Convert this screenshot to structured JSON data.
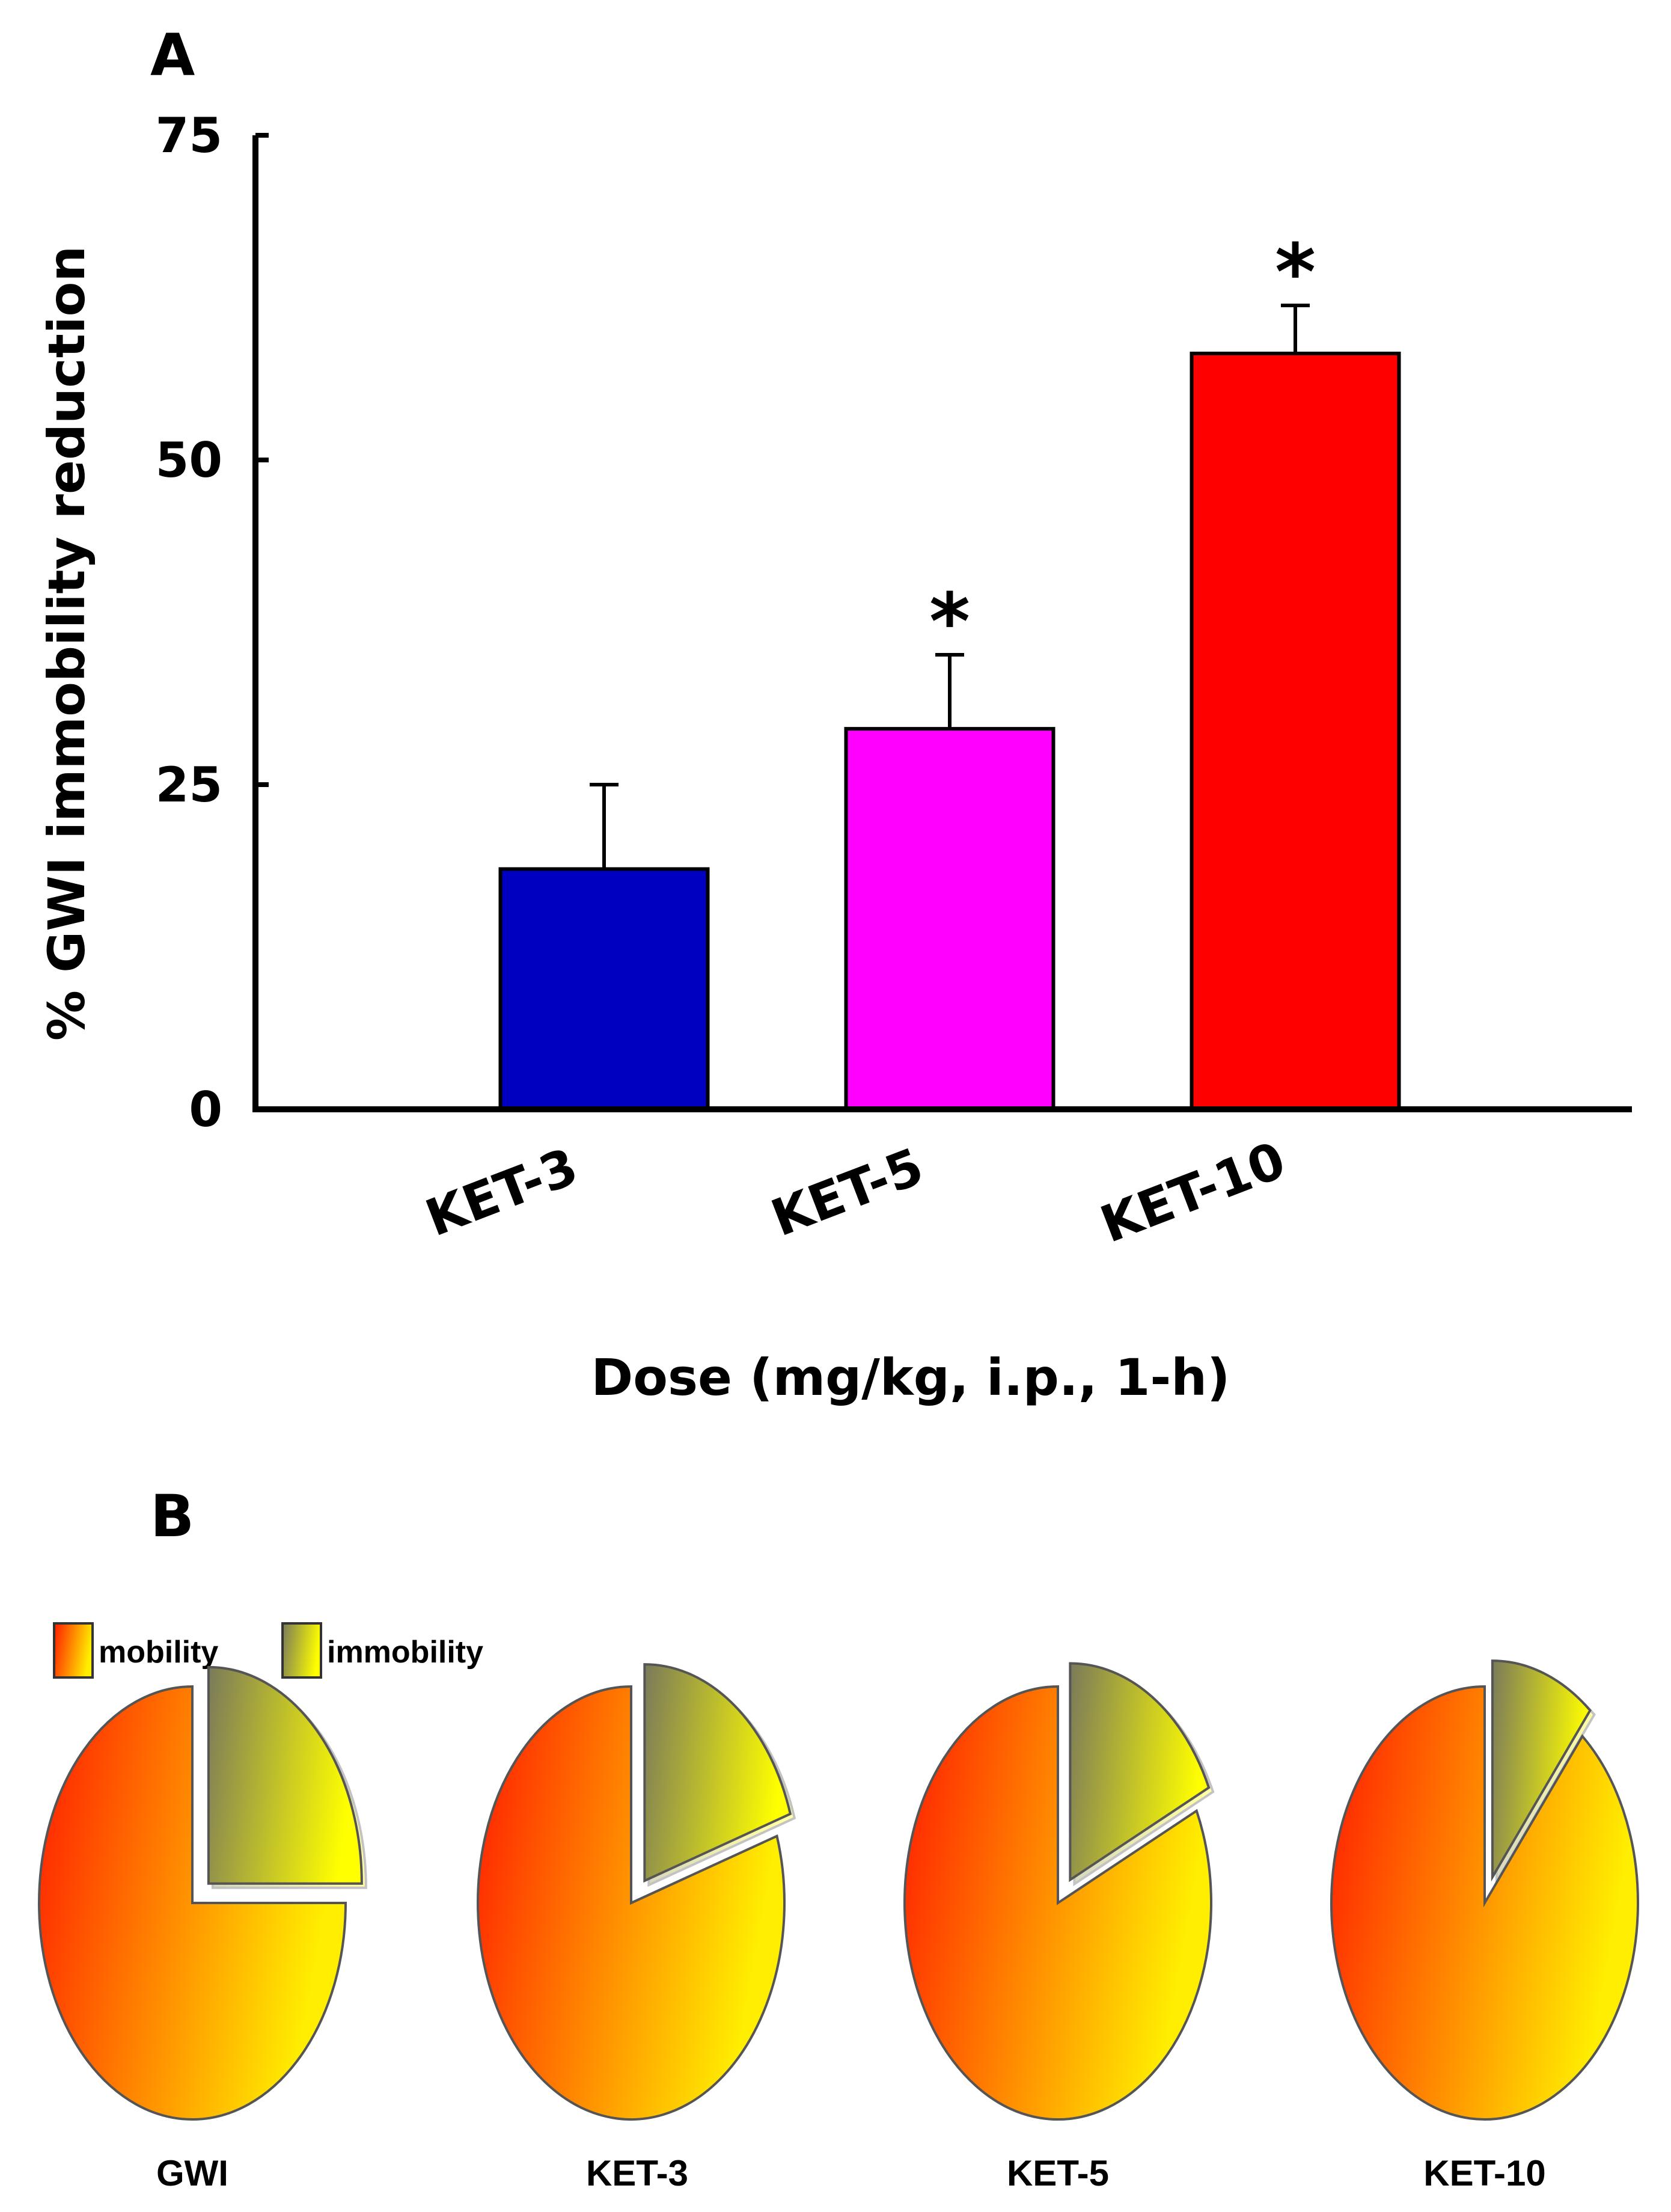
{
  "colors": {
    "bar_colors": [
      "#0000c0",
      "#ff00ff",
      "#ff0000"
    ],
    "mobility_start": "#ff1a00",
    "mobility_end": "#ffee00",
    "immobility_start": "#7a7a5a",
    "immobility_end": "#ffff00"
  },
  "chart_data": [
    {
      "panel": "A",
      "type": "bar",
      "title": "",
      "xlabel": "Dose (mg/kg, i.p., 1-h)",
      "ylabel": "% GWI immobility reduction",
      "ylim": [
        0,
        75
      ],
      "yticks": [
        0,
        25,
        50,
        75
      ],
      "ytick_labels": [
        "0",
        "25",
        "50",
        "75"
      ],
      "categories": [
        "KET-3",
        "KET-5",
        "KET-10"
      ],
      "values": [
        18.5,
        29.3,
        58.2
      ],
      "errors": [
        6.5,
        5.7,
        3.7
      ],
      "significance": [
        "",
        "*",
        "*"
      ],
      "grid": false
    },
    {
      "panel": "B",
      "type": "pie",
      "legend": [
        "mobility",
        "immobility"
      ],
      "charts": [
        {
          "label": "GWI",
          "mobility": 75,
          "immobility": 25
        },
        {
          "label": "KET-3",
          "mobility": 80,
          "immobility": 20
        },
        {
          "label": "KET-5",
          "mobility": 82,
          "immobility": 18
        },
        {
          "label": "KET-10",
          "mobility": 89,
          "immobility": 11
        }
      ]
    }
  ]
}
